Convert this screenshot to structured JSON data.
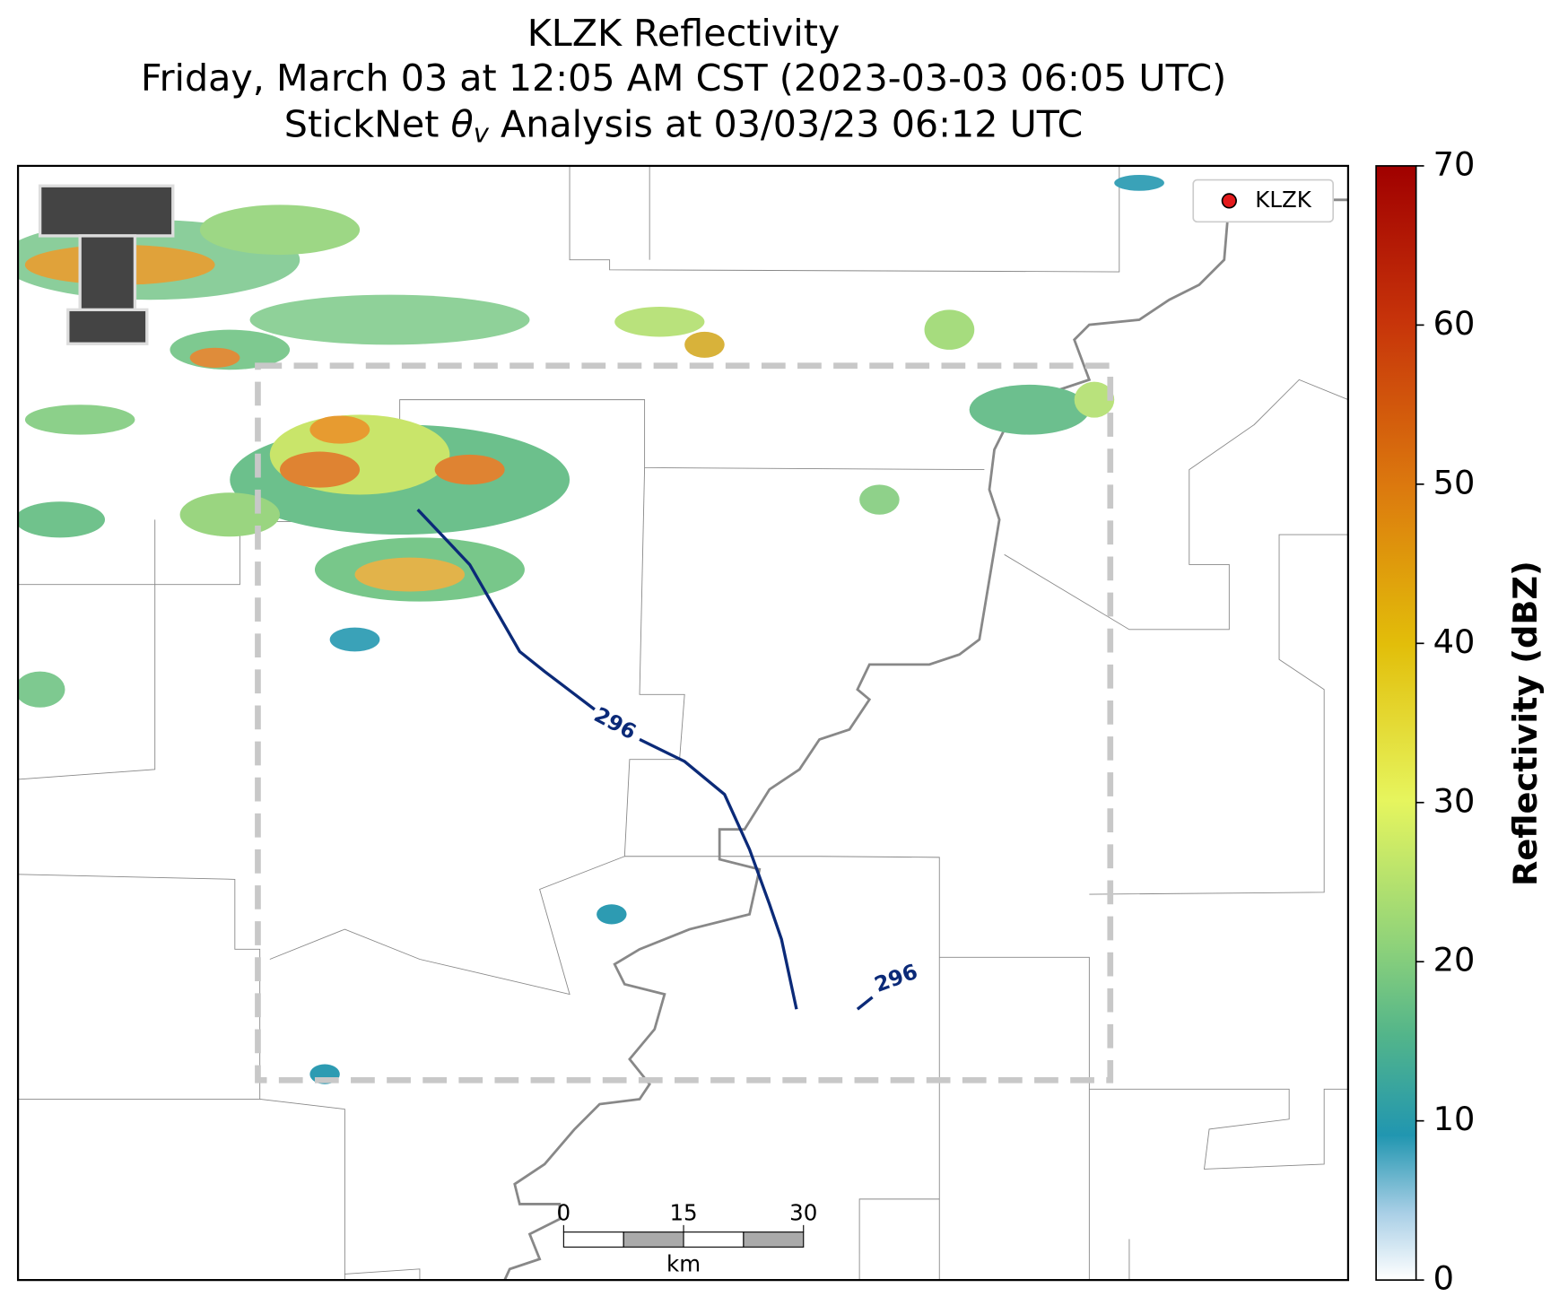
{
  "title_line1": "KLZK Reflectivity",
  "title_line2": "Friday, March 03 at 12:05 AM CST (2023-03-03 06:05 UTC)",
  "title_line3": {
    "before": "StickNet ",
    "symbol": "θ",
    "subscript": "v",
    "after": " Analysis at 03/03/23 06:12 UTC"
  },
  "legend": {
    "label": "KLZK",
    "color": "#e31a1c"
  },
  "contour_labels": [
    "296",
    "296"
  ],
  "scale_bar": {
    "ticks": [
      0,
      15,
      30
    ],
    "unit": "km"
  },
  "colorbar": {
    "label": "Reflectivity (dBZ)",
    "lim": [
      0,
      70
    ],
    "ticks": [
      0,
      10,
      20,
      30,
      40,
      50,
      60,
      70
    ]
  }
}
